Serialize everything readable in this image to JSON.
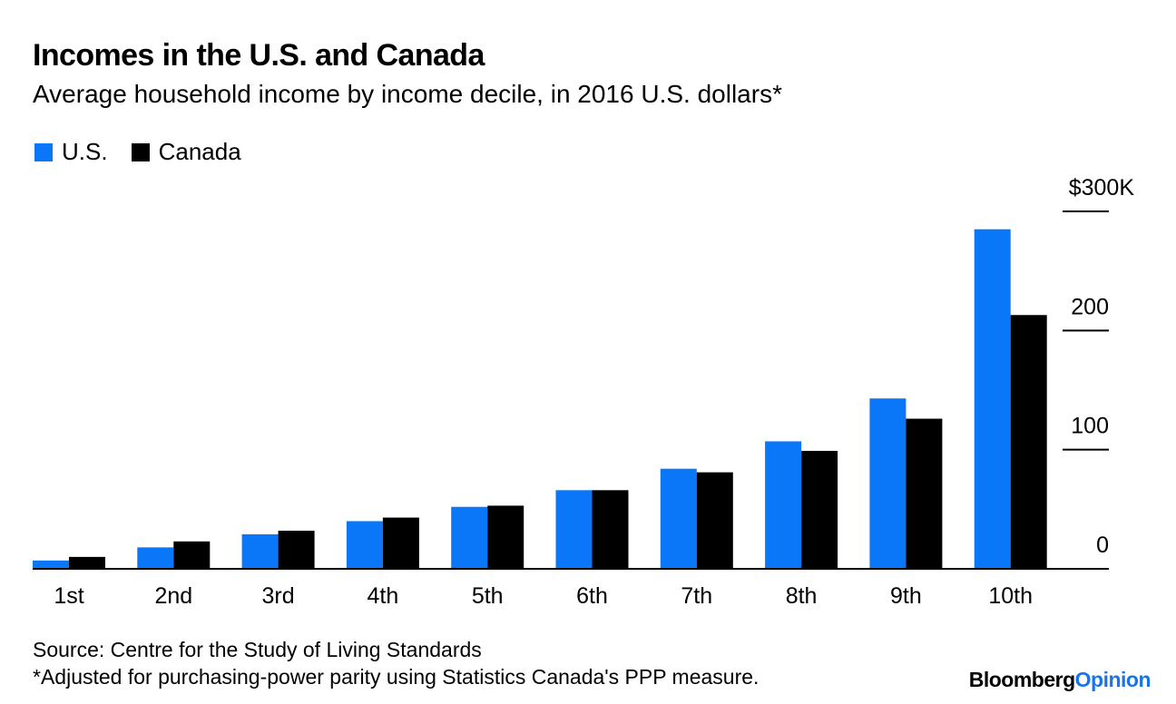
{
  "header": {
    "title": "Incomes in the U.S. and Canada",
    "subtitle": "Average household income by income decile, in 2016 U.S. dollars*"
  },
  "legend": [
    {
      "label": "U.S.",
      "color": "#0a77f8"
    },
    {
      "label": "Canada",
      "color": "#000000"
    }
  ],
  "chart_data": {
    "type": "bar",
    "categories": [
      "1st",
      "2nd",
      "3rd",
      "4th",
      "5th",
      "6th",
      "7th",
      "8th",
      "9th",
      "10th"
    ],
    "series": [
      {
        "name": "U.S.",
        "color": "#0a77f8",
        "values": [
          7,
          18,
          29,
          40,
          52,
          66,
          84,
          107,
          143,
          285
        ]
      },
      {
        "name": "Canada",
        "color": "#000000",
        "values": [
          10,
          23,
          32,
          43,
          53,
          66,
          81,
          99,
          126,
          213
        ]
      }
    ],
    "ylim": [
      0,
      300
    ],
    "yticks": [
      0,
      100,
      200,
      300
    ],
    "ytick_labels": [
      "0",
      "100",
      "200",
      "$300K"
    ],
    "y_axis_position": "right",
    "grid": false,
    "legend_position": "top-left"
  },
  "footer": {
    "source": "Source: Centre for the Study of Living Standards",
    "note": "*Adjusted for purchasing-power parity using Statistics Canada's PPP measure.",
    "brand_primary": "Bloomberg",
    "brand_secondary": "Opinion"
  }
}
